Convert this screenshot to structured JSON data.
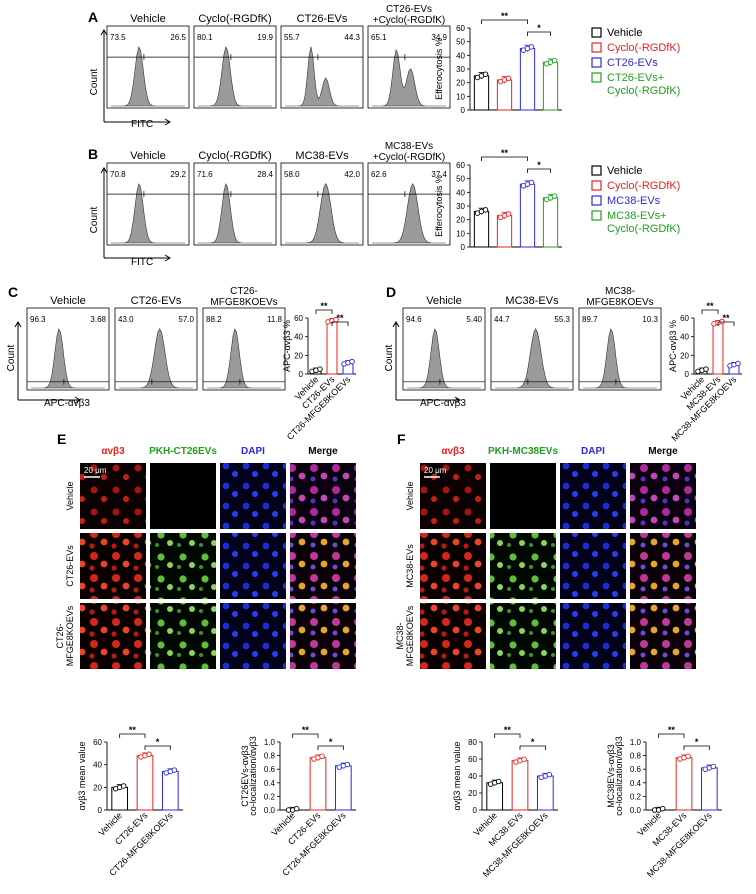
{
  "panel_letters": [
    "A",
    "B",
    "C",
    "D",
    "E",
    "F"
  ],
  "legend_colors": {
    "black": "#000000",
    "red": "#e8231f",
    "blue": "#2b2bd9",
    "green": "#1fa01f"
  },
  "flow_axes": {
    "count": "Count",
    "fitc": "FITC",
    "apc": "APC-αvβ3"
  },
  "panelA": {
    "plots": [
      {
        "title": "Vehicle",
        "left": "73.5",
        "right": "26.5"
      },
      {
        "title": "Cyclo(-RGDfK)",
        "left": "80.1",
        "right": "19.9"
      },
      {
        "title": "CT26-EVs",
        "left": "55.7",
        "right": "44.3"
      },
      {
        "title": "CT26-EVs\n+Cyclo(-RGDfK)",
        "title_l1": "CT26-EVs",
        "title_l2": "+Cyclo(-RGDfK)",
        "left": "65.1",
        "right": "34.9"
      }
    ],
    "ylabel": "Efferocytosis %",
    "legend": [
      "Vehicle",
      "Cyclo(-RGDfK)",
      "CT26-EVs",
      "CT26-EVs+\nCyclo(-RGDfK)"
    ],
    "sig": [
      "**",
      "*"
    ]
  },
  "panelB": {
    "plots": [
      {
        "title": "Vehicle",
        "left": "70.8",
        "right": "29.2"
      },
      {
        "title": "Cyclo(-RGDfK)",
        "left": "71.6",
        "right": "28.4"
      },
      {
        "title": "MC38-EVs",
        "left": "58.0",
        "right": "42.0"
      },
      {
        "title": "MC38-EVs\n+Cyclo(-RGDfK)",
        "title_l1": "MC38-EVs",
        "title_l2": "+Cyclo(-RGDfK)",
        "left": "62.6",
        "right": "37.4"
      }
    ],
    "ylabel": "Efferocytosis %",
    "legend": [
      "Vehicle",
      "Cyclo(-RGDfK)",
      "MC38-EVs",
      "MC38-EVs+\nCyclo(-RGDfK)"
    ],
    "sig": [
      "**",
      "*"
    ]
  },
  "panelC": {
    "plots": [
      {
        "title_l1": "Vehicle",
        "title_l2": "",
        "left": "96.3",
        "right": "3.68"
      },
      {
        "title_l1": "CT26-EVs",
        "title_l2": "",
        "left": "43.0",
        "right": "57.0"
      },
      {
        "title_l1": "CT26-",
        "title_l2": "MFGE8KOEVs",
        "left": "88.2",
        "right": "11.8"
      }
    ],
    "ylabel": "APC-αvβ3 %",
    "categories": [
      "Vehicle",
      "CT26-EVs",
      "CT26-MFGE8KOEVs"
    ],
    "sig": [
      "**",
      "**"
    ]
  },
  "panelD": {
    "plots": [
      {
        "title_l1": "Vehicle",
        "title_l2": "",
        "left": "94.6",
        "right": "5.40"
      },
      {
        "title_l1": "MC38-EVs",
        "title_l2": "",
        "left": "44.7",
        "right": "55.3"
      },
      {
        "title_l1": "MC38-",
        "title_l2": "MFGE8KOEVs",
        "left": "89.7",
        "right": "10.3"
      }
    ],
    "ylabel": "APC-αvβ3 %",
    "categories": [
      "Vehicle",
      "MC38-EVs",
      "MC38-MFGE8KOEVs"
    ],
    "sig": [
      "**",
      "**"
    ]
  },
  "panelE": {
    "channels": [
      "αvβ3",
      "PKH-CT26EVs",
      "DAPI",
      "Merge"
    ],
    "rows": [
      "Vehicle",
      "CT26-EVs",
      "CT26-\nMFGE8KOEVs"
    ],
    "scale": "20 μm",
    "chart1_ylabel": "αvβ3 mean value",
    "chart2_ylabel": "CT26EVs-αvβ3\nco-localization/αvβ3",
    "categories": [
      "Vehicle",
      "CT26-EVs",
      "CT26-MFGE8KOEVs"
    ],
    "sig": [
      "**",
      "*"
    ]
  },
  "panelF": {
    "channels": [
      "αvβ3",
      "PKH-MC38EVs",
      "DAPI",
      "Merge"
    ],
    "rows": [
      "Vehicle",
      "MC38-EVs",
      "MC38-\nMFGE8KOEVs"
    ],
    "scale": "20 μm",
    "chart1_ylabel": "αvβ3 mean value",
    "chart2_ylabel": "MC38EVs-αvβ3\nco-localization/αvβ3",
    "categories": [
      "Vehicle",
      "MC38-EVs",
      "MC38-MFGE8KOEVs"
    ],
    "sig": [
      "**",
      "*"
    ]
  },
  "chart_data": [
    {
      "id": "A",
      "type": "bar",
      "categories": [
        "Vehicle",
        "Cyclo(-RGDfK)",
        "CT26-EVs",
        "CT26-EVs+Cyclo(-RGDfK)"
      ],
      "values": [
        25,
        22,
        45,
        35
      ],
      "ylabel": "Efferocytosis %",
      "ylim": [
        0,
        60
      ],
      "yticks": [
        0,
        10,
        20,
        30,
        40,
        50,
        60
      ]
    },
    {
      "id": "B",
      "type": "bar",
      "categories": [
        "Vehicle",
        "Cyclo(-RGDfK)",
        "MC38-EVs",
        "MC38-EVs+Cyclo(-RGDfK)"
      ],
      "values": [
        26,
        23,
        46,
        36
      ],
      "ylabel": "Efferocytosis %",
      "ylim": [
        0,
        60
      ],
      "yticks": [
        0,
        10,
        20,
        30,
        40,
        50,
        60
      ]
    },
    {
      "id": "C",
      "type": "bar",
      "categories": [
        "Vehicle",
        "CT26-EVs",
        "CT26-MFGE8KOEVs"
      ],
      "values": [
        4,
        57,
        12
      ],
      "ylabel": "APC-αvβ3 %",
      "ylim": [
        0,
        60
      ],
      "yticks": [
        0,
        20,
        40,
        60
      ]
    },
    {
      "id": "D",
      "type": "bar",
      "categories": [
        "Vehicle",
        "MC38-EVs",
        "MC38-MFGE8KOEVs"
      ],
      "values": [
        4,
        55,
        10
      ],
      "ylabel": "APC-αvβ3 %",
      "ylim": [
        0,
        60
      ],
      "yticks": [
        0,
        20,
        40,
        60
      ]
    },
    {
      "id": "E1",
      "type": "bar",
      "categories": [
        "Vehicle",
        "CT26-EVs",
        "CT26-MFGE8KOEVs"
      ],
      "values": [
        20,
        48,
        34
      ],
      "ylabel": "αvβ3 mean value",
      "ylim": [
        0,
        60
      ],
      "yticks": [
        0,
        20,
        40,
        60
      ]
    },
    {
      "id": "E2",
      "type": "bar",
      "categories": [
        "Vehicle",
        "CT26-EVs",
        "CT26-MFGE8KOEVs"
      ],
      "values": [
        0,
        0.77,
        0.65
      ],
      "ylabel": "CT26EVs-αvβ3 co-localization/αvβ3",
      "ylim": [
        0,
        1.0
      ],
      "yticks": [
        0.0,
        0.2,
        0.4,
        0.6,
        0.8,
        1.0
      ]
    },
    {
      "id": "F1",
      "type": "bar",
      "categories": [
        "Vehicle",
        "MC38-EVs",
        "MC38-MFGE8KOEVs"
      ],
      "values": [
        32,
        58,
        40
      ],
      "ylabel": "αvβ3 mean value",
      "ylim": [
        0,
        80
      ],
      "yticks": [
        0,
        20,
        40,
        60,
        80
      ]
    },
    {
      "id": "F2",
      "type": "bar",
      "categories": [
        "Vehicle",
        "MC38-EVs",
        "MC38-MFGE8KOEVs"
      ],
      "values": [
        0,
        0.77,
        0.62
      ],
      "ylabel": "MC38EVs-αvβ3 co-localization/αvβ3",
      "ylim": [
        0,
        1.0
      ],
      "yticks": [
        0.0,
        0.2,
        0.4,
        0.6,
        0.8,
        1.0
      ]
    }
  ]
}
